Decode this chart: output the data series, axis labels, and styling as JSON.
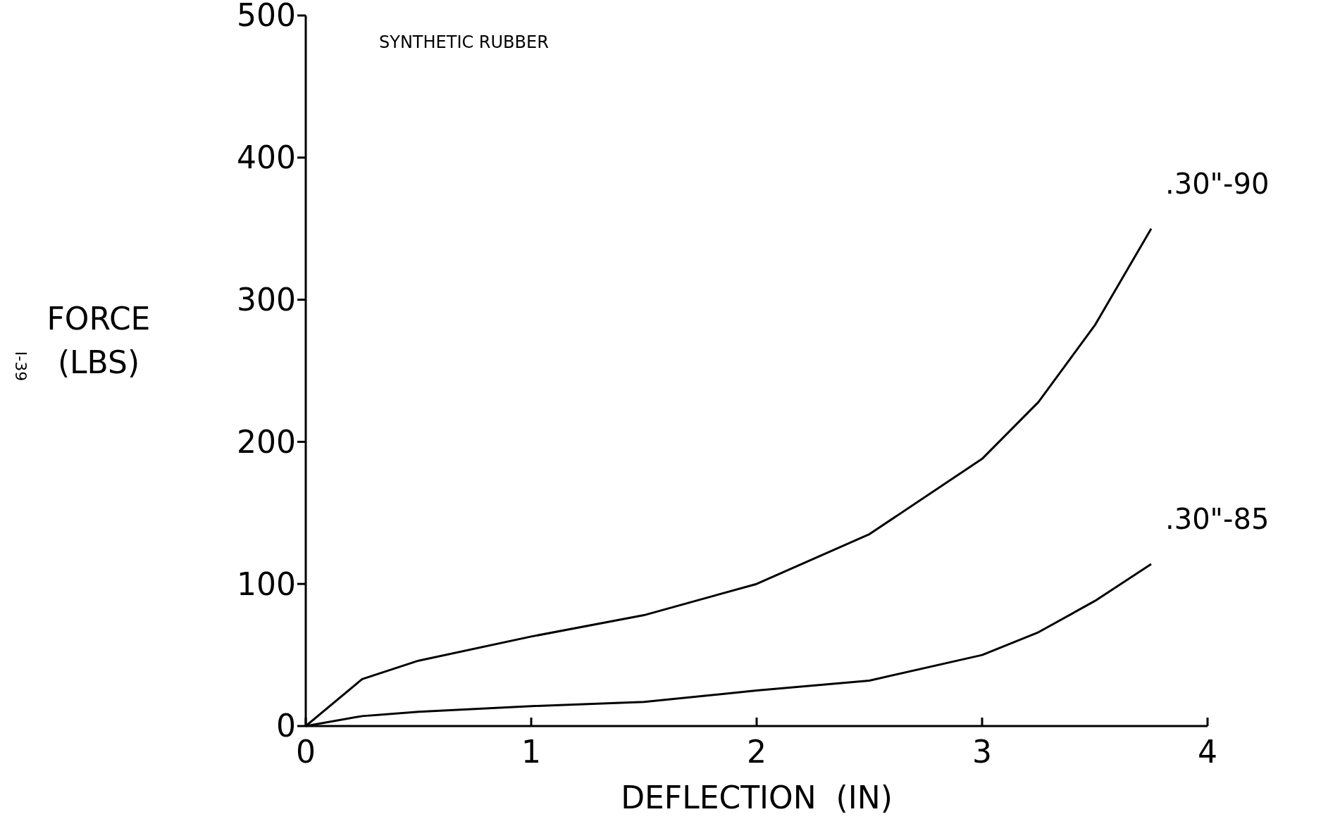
{
  "chart_data": {
    "type": "line",
    "title": "SYNTHETIC RUBBER",
    "xlabel": "DEFLECTION  (IN)",
    "ylabel": "FORCE (LBS)",
    "annotations": [
      "I-39"
    ],
    "xlim": [
      0,
      4
    ],
    "ylim": [
      0,
      500
    ],
    "xticks": [
      0,
      1,
      2,
      3,
      4
    ],
    "yticks": [
      0,
      100,
      200,
      300,
      400,
      500
    ],
    "grid": false,
    "marker": "none",
    "line_style": "solid",
    "series": [
      {
        "name": ".30\"-90",
        "color": "#000000",
        "x": [
          0,
          0.25,
          0.5,
          1,
          1.5,
          2,
          2.5,
          3,
          3.25,
          3.5,
          3.75
        ],
        "values": [
          0,
          33,
          46,
          63,
          78,
          100,
          135,
          188,
          228,
          282,
          350
        ]
      },
      {
        "name": ".30\"-85",
        "color": "#000000",
        "x": [
          0,
          0.25,
          0.5,
          1,
          1.5,
          2,
          2.5,
          3,
          3.25,
          3.5,
          3.75
        ],
        "values": [
          0,
          7,
          10,
          14,
          17,
          25,
          32,
          50,
          66,
          88,
          114
        ]
      }
    ]
  }
}
